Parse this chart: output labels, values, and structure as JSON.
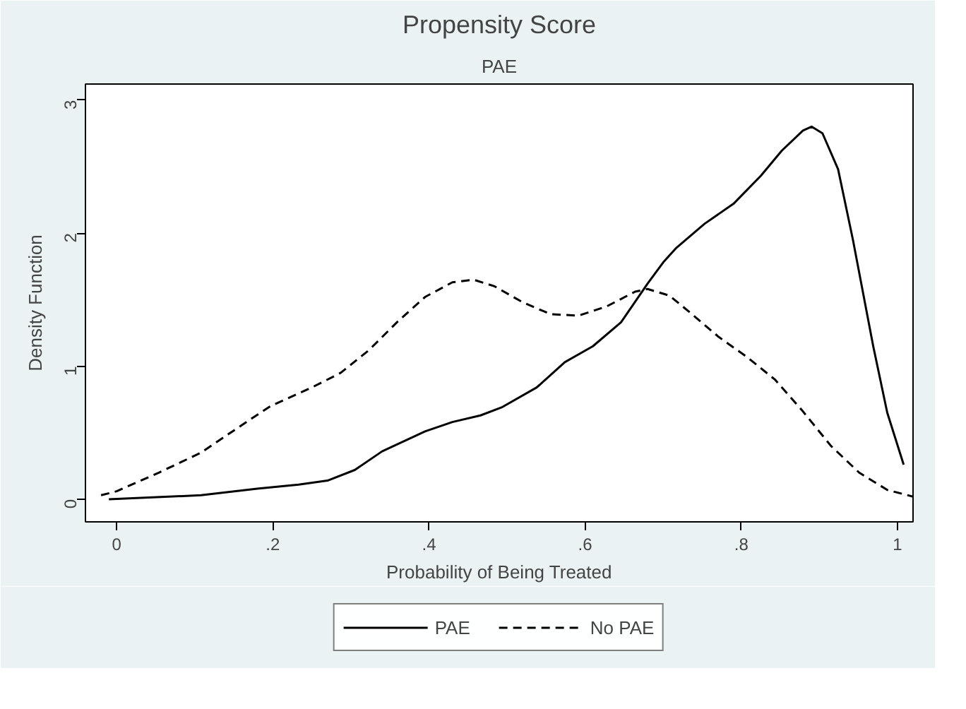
{
  "chart_data": {
    "type": "line",
    "title": "Propensity Score",
    "subtitle": "PAE",
    "xlabel": "Probability of Being Treated",
    "ylabel": "Density Function",
    "xlim": [
      -0.04,
      1.02
    ],
    "ylim": [
      -0.17,
      3.12
    ],
    "xticks": [
      0,
      {
        "value": 0.2,
        "label": ".2"
      },
      {
        "value": 0.4,
        "label": ".4"
      },
      {
        "value": 0.6,
        "label": ".6"
      },
      {
        "value": 0.8,
        "label": ".8"
      },
      1
    ],
    "yticks": [
      0,
      1,
      2,
      3
    ],
    "grid": false,
    "legend": "bottom",
    "series": [
      {
        "name": "PAE",
        "color": "#000000",
        "line_style": "solid",
        "x": [
          -0.01,
          0.108,
          0.18,
          0.233,
          0.27,
          0.305,
          0.34,
          0.395,
          0.43,
          0.466,
          0.493,
          0.538,
          0.574,
          0.61,
          0.646,
          0.68,
          0.7,
          0.717,
          0.753,
          0.79,
          0.825,
          0.852,
          0.879,
          0.89,
          0.904,
          0.924,
          0.943,
          0.969,
          0.987,
          1.008
        ],
        "values": [
          0.0,
          0.03,
          0.08,
          0.11,
          0.14,
          0.22,
          0.36,
          0.51,
          0.58,
          0.63,
          0.69,
          0.84,
          1.03,
          1.15,
          1.33,
          1.62,
          1.78,
          1.89,
          2.07,
          2.22,
          2.43,
          2.62,
          2.77,
          2.8,
          2.75,
          2.48,
          1.95,
          1.15,
          0.65,
          0.26
        ]
      },
      {
        "name": "No PAE",
        "color": "#000000",
        "line_style": "dashed",
        "x": [
          -0.02,
          0.0,
          0.054,
          0.108,
          0.161,
          0.197,
          0.25,
          0.287,
          0.323,
          0.359,
          0.395,
          0.43,
          0.457,
          0.484,
          0.52,
          0.556,
          0.592,
          0.628,
          0.664,
          0.68,
          0.708,
          0.735,
          0.771,
          0.807,
          0.843,
          0.879,
          0.915,
          0.951,
          0.987,
          1.02
        ],
        "values": [
          0.03,
          0.06,
          0.2,
          0.35,
          0.56,
          0.7,
          0.84,
          0.95,
          1.12,
          1.33,
          1.52,
          1.63,
          1.65,
          1.6,
          1.48,
          1.39,
          1.38,
          1.45,
          1.56,
          1.58,
          1.53,
          1.4,
          1.22,
          1.07,
          0.9,
          0.66,
          0.4,
          0.2,
          0.07,
          0.02
        ]
      }
    ]
  }
}
